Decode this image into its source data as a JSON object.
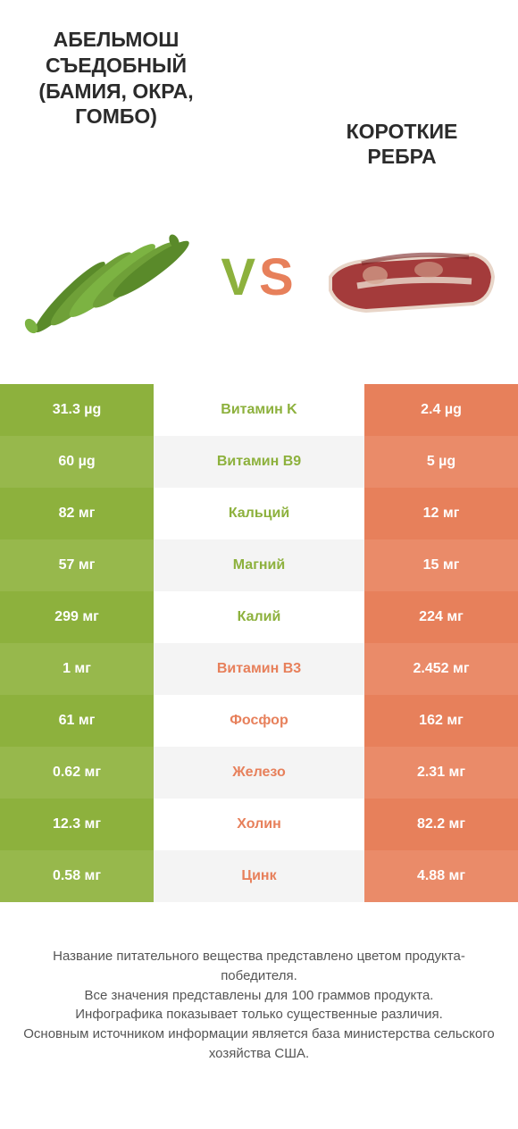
{
  "colors": {
    "green": "#8db13d",
    "green_alt": "#97b84c",
    "orange": "#e7805b",
    "orange_alt": "#ea8b69",
    "mid_even": "#f4f4f4",
    "text_dark": "#2b2b2b",
    "footer_text": "#555555"
  },
  "header": {
    "left_title": "АБЕЛЬМОШ СЪЕДОБНЫЙ (БАМИЯ, ОКРА, ГОМБО)",
    "right_title": "КОРОТКИЕ РЕБРА",
    "vs_v": "V",
    "vs_s": "S"
  },
  "rows": [
    {
      "label": "Витамин K",
      "left": "31.3 µg",
      "right": "2.4 µg",
      "winner": "left"
    },
    {
      "label": "Витамин B9",
      "left": "60 µg",
      "right": "5 µg",
      "winner": "left"
    },
    {
      "label": "Кальций",
      "left": "82 мг",
      "right": "12 мг",
      "winner": "left"
    },
    {
      "label": "Магний",
      "left": "57 мг",
      "right": "15 мг",
      "winner": "left"
    },
    {
      "label": "Калий",
      "left": "299 мг",
      "right": "224 мг",
      "winner": "left"
    },
    {
      "label": "Витамин B3",
      "left": "1 мг",
      "right": "2.452 мг",
      "winner": "right"
    },
    {
      "label": "Фосфор",
      "left": "61 мг",
      "right": "162 мг",
      "winner": "right"
    },
    {
      "label": "Железо",
      "left": "0.62 мг",
      "right": "2.31 мг",
      "winner": "right"
    },
    {
      "label": "Холин",
      "left": "12.3 мг",
      "right": "82.2 мг",
      "winner": "right"
    },
    {
      "label": "Цинк",
      "left": "0.58 мг",
      "right": "4.88 мг",
      "winner": "right"
    }
  ],
  "footer": {
    "line1": "Название питательного вещества представлено цветом продукта-победителя.",
    "line2": "Все значения представлены для 100 граммов продукта.",
    "line3": "Инфографика показывает только существенные различия.",
    "line4": "Основным источником информации является база министерства сельского хозяйства США."
  }
}
